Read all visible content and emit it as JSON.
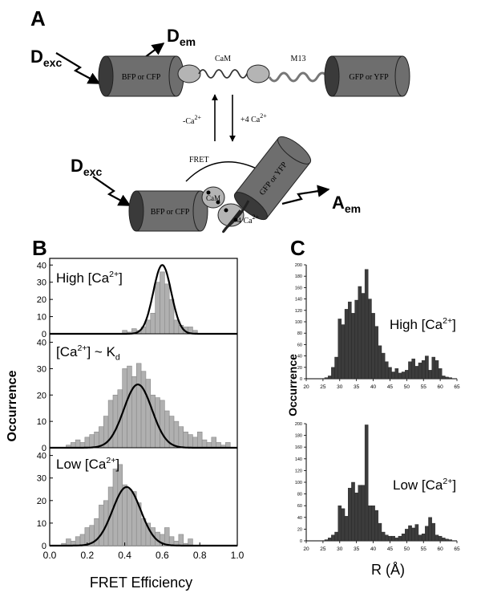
{
  "figure": {
    "panel_labels": {
      "a": "A",
      "b": "B",
      "c": "C"
    }
  },
  "schematic": {
    "top": {
      "d_exc": {
        "main": "D",
        "sub": "exc"
      },
      "d_em": {
        "main": "D",
        "sub": "em"
      },
      "donor_label": "BFP or CFP",
      "cam_label": "CaM",
      "m13_label": "M13",
      "acceptor_label": "GFP or YFP"
    },
    "arrows": {
      "minus": {
        "text": "-Ca",
        "sup": "2+"
      },
      "plus": {
        "text": "+4 Ca",
        "sup": "2+"
      }
    },
    "bottom": {
      "fret_label": "FRET",
      "d_exc": {
        "main": "D",
        "sub": "exc"
      },
      "donor_label": "BFP or CFP",
      "cam_label": "CaM",
      "acceptor_label": "GFP or YFP",
      "ca_label": {
        "text": "4 Ca",
        "sup": "2+"
      },
      "a_em": {
        "main": "A",
        "sub": "em"
      }
    }
  },
  "colors": {
    "cylinder": "#6e6e6e",
    "cylinder_cap": "#3a3a3a",
    "cam_lobe": "#b4b4b4",
    "bar_b": "#b0b0b0",
    "bar_c": "#3c3c3c",
    "fit": "#000000"
  },
  "chart_data": [
    {
      "panel": "B",
      "type": "bar",
      "xlabel": "FRET Efficiency",
      "ylabel": "Occurrence",
      "xlim": [
        0.0,
        1.0
      ],
      "xticks": [
        "0.0",
        "0.2",
        "0.4",
        "0.6",
        "0.8",
        "1.0"
      ],
      "bin_width": 0.025,
      "subplots": [
        {
          "label": {
            "text": "High [Ca",
            "sup": "2+",
            "tail": "]"
          },
          "ylim": [
            0,
            42
          ],
          "yticks": [
            0,
            10,
            20,
            30,
            40
          ],
          "x": [
            0.4,
            0.425,
            0.45,
            0.475,
            0.5,
            0.525,
            0.55,
            0.575,
            0.6,
            0.625,
            0.65,
            0.675,
            0.7,
            0.725,
            0.75,
            0.775
          ],
          "values": [
            2,
            1,
            3,
            2,
            4,
            8,
            12,
            30,
            36,
            29,
            20,
            8,
            5,
            4,
            4,
            2
          ],
          "fit": {
            "type": "gaussian",
            "amplitude": 40,
            "center": 0.6,
            "sigma": 0.048
          }
        },
        {
          "label": {
            "text": "[Ca",
            "sup": "2+",
            "tail": "] ~ K",
            "sub": "d"
          },
          "ylim": [
            0,
            42
          ],
          "yticks": [
            0,
            10,
            20,
            30,
            40
          ],
          "x": [
            0.1,
            0.125,
            0.15,
            0.175,
            0.2,
            0.225,
            0.25,
            0.275,
            0.3,
            0.325,
            0.35,
            0.375,
            0.4,
            0.425,
            0.45,
            0.475,
            0.5,
            0.525,
            0.55,
            0.575,
            0.6,
            0.625,
            0.65,
            0.675,
            0.7,
            0.725,
            0.75,
            0.775,
            0.8,
            0.825,
            0.85,
            0.875,
            0.9,
            0.925,
            0.95
          ],
          "values": [
            1,
            2,
            3,
            2,
            4,
            5,
            6,
            8,
            12,
            18,
            20,
            22,
            30,
            31,
            27,
            32,
            29,
            26,
            20,
            19,
            18,
            14,
            12,
            10,
            8,
            6,
            5,
            4,
            6,
            3,
            2,
            4,
            2,
            1,
            2
          ],
          "fit": {
            "type": "gaussian",
            "amplitude": 24,
            "center": 0.47,
            "sigma": 0.075
          }
        },
        {
          "label": {
            "text": "Low [Ca",
            "sup": "2+",
            "tail": "]"
          },
          "ylim": [
            0,
            42
          ],
          "yticks": [
            0,
            10,
            20,
            30,
            40
          ],
          "x": [
            0.075,
            0.1,
            0.125,
            0.15,
            0.175,
            0.2,
            0.225,
            0.25,
            0.275,
            0.3,
            0.325,
            0.35,
            0.375,
            0.4,
            0.425,
            0.45,
            0.475,
            0.5,
            0.525,
            0.55,
            0.575,
            0.6,
            0.625,
            0.65,
            0.675,
            0.7,
            0.725,
            0.75
          ],
          "values": [
            1,
            3,
            2,
            4,
            5,
            8,
            9,
            12,
            18,
            20,
            26,
            34,
            36,
            27,
            25,
            24,
            19,
            12,
            10,
            8,
            6,
            5,
            8,
            4,
            2,
            5,
            1,
            3
          ],
          "fit": {
            "type": "gaussian",
            "amplitude": 26,
            "center": 0.41,
            "sigma": 0.075
          }
        }
      ]
    },
    {
      "panel": "C",
      "type": "bar",
      "xlabel": "R (Å)",
      "ylabel": "Occurrence",
      "xlim": [
        20,
        65
      ],
      "xticks": [
        "20",
        "25",
        "30",
        "35",
        "40",
        "45",
        "50",
        "55",
        "60",
        "65"
      ],
      "bin_width": 1,
      "subplots": [
        {
          "label": {
            "text": "High [Ca",
            "sup": "2+",
            "tail": "]"
          },
          "ylim": [
            0,
            200
          ],
          "yticks": [
            0,
            20,
            40,
            60,
            80,
            100,
            120,
            140,
            160,
            180,
            200
          ],
          "x": [
            26,
            27,
            28,
            29,
            30,
            31,
            32,
            33,
            34,
            35,
            36,
            37,
            38,
            39,
            40,
            41,
            42,
            43,
            44,
            45,
            46,
            47,
            48,
            49,
            50,
            51,
            52,
            53,
            54,
            55,
            56,
            57,
            58,
            59,
            60,
            61,
            62,
            63
          ],
          "values": [
            2,
            5,
            20,
            38,
            105,
            95,
            122,
            135,
            115,
            138,
            162,
            150,
            192,
            140,
            115,
            92,
            58,
            45,
            30,
            20,
            12,
            18,
            10,
            12,
            15,
            30,
            35,
            22,
            28,
            32,
            40,
            15,
            38,
            32,
            18,
            5,
            3,
            2
          ]
        },
        {
          "label": {
            "text": "Low [Ca",
            "sup": "2+",
            "tail": "]"
          },
          "ylim": [
            0,
            200
          ],
          "yticks": [
            0,
            20,
            40,
            60,
            80,
            100,
            120,
            140,
            160,
            180,
            200
          ],
          "x": [
            26,
            27,
            28,
            29,
            30,
            31,
            32,
            33,
            34,
            35,
            36,
            37,
            38,
            39,
            40,
            41,
            42,
            43,
            44,
            45,
            46,
            47,
            48,
            49,
            50,
            51,
            52,
            53,
            54,
            55,
            56,
            57,
            58,
            59,
            60,
            61,
            62,
            63
          ],
          "values": [
            2,
            5,
            10,
            15,
            60,
            55,
            42,
            90,
            100,
            82,
            95,
            95,
            198,
            60,
            60,
            52,
            30,
            15,
            10,
            8,
            8,
            5,
            8,
            12,
            20,
            26,
            22,
            28,
            10,
            12,
            25,
            40,
            30,
            10,
            8,
            5,
            3,
            2
          ]
        }
      ]
    }
  ]
}
